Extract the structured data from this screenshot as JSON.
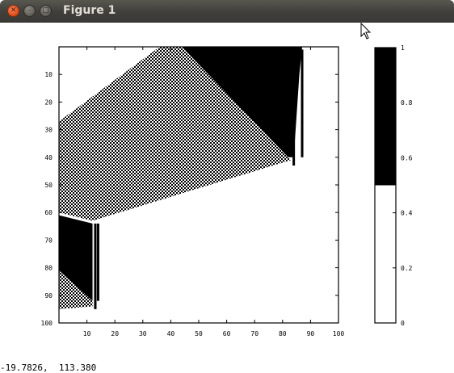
{
  "window": {
    "title": "Figure 1"
  },
  "status": {
    "coordinates": "-19.7826,  113.380"
  },
  "icons": {
    "close": "close-icon",
    "minimize": "minimize-icon",
    "maximize": "maximize-icon",
    "cursor": "mouse-pointer-icon"
  },
  "chart_data": [
    {
      "type": "heatmap",
      "title": "",
      "xlabel": "",
      "ylabel": "",
      "xlim": [
        0,
        100
      ],
      "ylim": [
        100,
        0
      ],
      "xticks": [
        "10",
        "20",
        "30",
        "40",
        "50",
        "60",
        "70",
        "80",
        "90",
        "100"
      ],
      "yticks": [
        "10",
        "20",
        "30",
        "40",
        "50",
        "60",
        "70",
        "80",
        "90",
        "100"
      ],
      "colormap": [
        "#ffffff",
        "#000000"
      ],
      "regions": [
        {
          "name": "upper-checkerboard",
          "value": "checker",
          "polygon": [
            [
              0,
              27
            ],
            [
              36,
              0
            ],
            [
              44,
              0
            ],
            [
              82,
              40
            ],
            [
              83,
              41
            ],
            [
              12,
              63
            ],
            [
              0,
              60
            ]
          ]
        },
        {
          "name": "upper-right-black",
          "value": 1,
          "polygon": [
            [
              44,
              0
            ],
            [
              87,
              0
            ],
            [
              86,
              10
            ],
            [
              84,
              40
            ],
            [
              82,
              40
            ]
          ]
        },
        {
          "name": "left-black-block",
          "value": 1,
          "polygon": [
            [
              0,
              61
            ],
            [
              12,
              64
            ],
            [
              12,
              92
            ],
            [
              0,
              81
            ]
          ]
        },
        {
          "name": "lower-left-checkerboard",
          "value": "checker",
          "polygon": [
            [
              0,
              81
            ],
            [
              12,
              92
            ],
            [
              12,
              94
            ],
            [
              0,
              95
            ]
          ]
        }
      ],
      "lines": [
        {
          "x": 13,
          "y": [
            64,
            95
          ]
        },
        {
          "x": 14,
          "y": [
            64,
            92
          ]
        },
        {
          "x": 84,
          "y": [
            1,
            43
          ]
        },
        {
          "x": 87,
          "y": [
            1,
            40
          ]
        }
      ]
    },
    {
      "type": "colorbar",
      "ylim": [
        0,
        1
      ],
      "yticks": [
        "0",
        "0.2",
        "0.4",
        "0.6",
        "0.8",
        "1"
      ],
      "segments": [
        {
          "from": 0,
          "to": 0.5,
          "color": "#ffffff"
        },
        {
          "from": 0.5,
          "to": 1,
          "color": "#000000"
        }
      ]
    }
  ]
}
